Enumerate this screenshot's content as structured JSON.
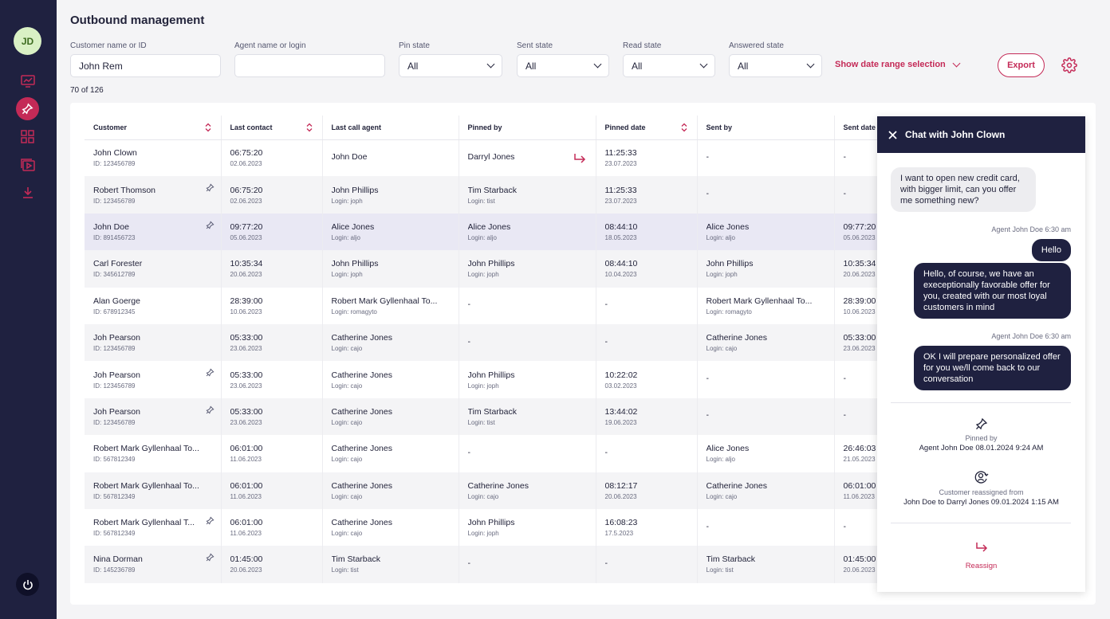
{
  "user": {
    "initials": "JD"
  },
  "page": {
    "title": "Outbound management",
    "count": "70 of 126"
  },
  "filters": {
    "customer": {
      "label": "Customer name or ID",
      "value": "John Rem"
    },
    "agent": {
      "label": "Agent name or login",
      "value": ""
    },
    "pin": {
      "label": "Pin state",
      "value": "All"
    },
    "sent": {
      "label": "Sent state",
      "value": "All"
    },
    "read": {
      "label": "Read state",
      "value": "All"
    },
    "answered": {
      "label": "Answered state",
      "value": "All"
    },
    "date_range": "Show date range selection",
    "export": "Export"
  },
  "table": {
    "headers": [
      "Customer",
      "Last contact",
      "Last call agent",
      "Pinned by",
      "Pinned date",
      "Sent by",
      "Sent date"
    ],
    "rows": [
      {
        "name": "John Clown",
        "id": "ID: 123456789",
        "lc_time": "06:75:20",
        "lc_date": "02.06.2023",
        "agent": "John Doe",
        "agent_login": "",
        "pinned_by": "Darryl Jones",
        "pinned_login": "",
        "pinned_time": "11:25:33",
        "pinned_date": "23.07.2023",
        "sent_by": "-",
        "sent_login": "",
        "sent_time": "-",
        "sent_date": "",
        "pin_icon": false,
        "arrow": true
      },
      {
        "name": "Robert Thomson",
        "id": "ID: 123456789",
        "lc_time": "06:75:20",
        "lc_date": "02.06.2023",
        "agent": "John Phillips",
        "agent_login": "Login: joph",
        "pinned_by": "Tim Starback",
        "pinned_login": "Login: tist",
        "pinned_time": "11:25:33",
        "pinned_date": "23.07.2023",
        "sent_by": "-",
        "sent_login": "",
        "sent_time": "-",
        "sent_date": "",
        "pin_icon": true,
        "arrow": false
      },
      {
        "name": "John Doe",
        "id": "ID: 891456723",
        "lc_time": "09:77:20",
        "lc_date": "05.06.2023",
        "agent": "Alice Jones",
        "agent_login": "Login: aljo",
        "pinned_by": "Alice Jones",
        "pinned_login": "Login: aljo",
        "pinned_time": "08:44:10",
        "pinned_date": "18.05.2023",
        "sent_by": "Alice Jones",
        "sent_login": "Login: aljo",
        "sent_time": "09:77:20",
        "sent_date": "05.06.2023",
        "pin_icon": true,
        "arrow": false
      },
      {
        "name": "Carl Forester",
        "id": "ID: 345612789",
        "lc_time": "10:35:34",
        "lc_date": "20.06.2023",
        "agent": "John Phillips",
        "agent_login": "Login: joph",
        "pinned_by": "John Phillips",
        "pinned_login": "Login: joph",
        "pinned_time": "08:44:10",
        "pinned_date": "10.04.2023",
        "sent_by": "John Phillips",
        "sent_login": "Login: joph",
        "sent_time": "10:35:34",
        "sent_date": "20.06.2023",
        "pin_icon": false,
        "arrow": false
      },
      {
        "name": "Alan Goerge",
        "id": "ID: 678912345",
        "lc_time": "28:39:00",
        "lc_date": "10.06.2023",
        "agent": "Robert Mark Gyllenhaal To...",
        "agent_login": "Login: romagyto",
        "pinned_by": "-",
        "pinned_login": "",
        "pinned_time": "-",
        "pinned_date": "",
        "sent_by": "Robert Mark Gyllenhaal To...",
        "sent_login": "Login: romagyto",
        "sent_time": "28:39:00",
        "sent_date": "10.06.2023",
        "pin_icon": false,
        "arrow": false
      },
      {
        "name": "Joh Pearson",
        "id": "ID: 123456789",
        "lc_time": "05:33:00",
        "lc_date": "23.06.2023",
        "agent": "Catherine Jones",
        "agent_login": "Login: cajo",
        "pinned_by": "-",
        "pinned_login": "",
        "pinned_time": "-",
        "pinned_date": "",
        "sent_by": "Catherine Jones",
        "sent_login": "Login: cajo",
        "sent_time": "05:33:00",
        "sent_date": "23.06.2023",
        "pin_icon": false,
        "arrow": false
      },
      {
        "name": "Joh Pearson",
        "id": "ID: 123456789",
        "lc_time": "05:33:00",
        "lc_date": "23.06.2023",
        "agent": "Catherine Jones",
        "agent_login": "Login: cajo",
        "pinned_by": "John Phillips",
        "pinned_login": "Login: joph",
        "pinned_time": "10:22:02",
        "pinned_date": "03.02.2023",
        "sent_by": "-",
        "sent_login": "",
        "sent_time": "-",
        "sent_date": "",
        "pin_icon": true,
        "arrow": false
      },
      {
        "name": "Joh Pearson",
        "id": "ID: 123456789",
        "lc_time": "05:33:00",
        "lc_date": "23.06.2023",
        "agent": "Catherine Jones",
        "agent_login": "Login: cajo",
        "pinned_by": "Tim Starback",
        "pinned_login": "Login: tist",
        "pinned_time": "13:44:02",
        "pinned_date": "19.06.2023",
        "sent_by": "-",
        "sent_login": "",
        "sent_time": "-",
        "sent_date": "",
        "pin_icon": true,
        "arrow": false
      },
      {
        "name": "Robert Mark Gyllenhaal To...",
        "id": "ID: 567812349",
        "lc_time": "06:01:00",
        "lc_date": "11.06.2023",
        "agent": "Catherine Jones",
        "agent_login": "Login: cajo",
        "pinned_by": "-",
        "pinned_login": "",
        "pinned_time": "-",
        "pinned_date": "",
        "sent_by": "Alice Jones",
        "sent_login": "Login: aljo",
        "sent_time": "26:46:03",
        "sent_date": "21.05.2023",
        "pin_icon": false,
        "arrow": false
      },
      {
        "name": "Robert Mark Gyllenhaal To...",
        "id": "ID: 567812349",
        "lc_time": "06:01:00",
        "lc_date": "11.06.2023",
        "agent": "Catherine Jones",
        "agent_login": "Login: cajo",
        "pinned_by": "Catherine Jones",
        "pinned_login": "Login: cajo",
        "pinned_time": "08:12:17",
        "pinned_date": "20.06.2023",
        "sent_by": "Catherine Jones",
        "sent_login": "Login: cajo",
        "sent_time": "06:01:00",
        "sent_date": "11.06.2023",
        "pin_icon": false,
        "arrow": false
      },
      {
        "name": "Robert Mark Gyllenhaal T...",
        "id": "ID: 567812349",
        "lc_time": "06:01:00",
        "lc_date": "11.06.2023",
        "agent": "Catherine Jones",
        "agent_login": "Login: cajo",
        "pinned_by": "John Phillips",
        "pinned_login": "Login: joph",
        "pinned_time": "16:08:23",
        "pinned_date": "17.5.2023",
        "sent_by": "-",
        "sent_login": "",
        "sent_time": "-",
        "sent_date": "",
        "pin_icon": true,
        "arrow": false
      },
      {
        "name": "Nina Dorman",
        "id": "ID: 145236789",
        "lc_time": "01:45:00",
        "lc_date": "20.06.2023",
        "agent": "Tim Starback",
        "agent_login": "Login: tist",
        "pinned_by": "-",
        "pinned_login": "",
        "pinned_time": "-",
        "pinned_date": "",
        "sent_by": "Tim Starback",
        "sent_login": "Login: tist",
        "sent_time": "01:45:00",
        "sent_date": "20.06.2023",
        "pin_icon": true,
        "arrow": false
      }
    ]
  },
  "chat": {
    "title": "Chat with John Clown",
    "customer_message": "I want to open new credit card, with bigger limit, can you offer me something new?",
    "meta1": "Agent John Doe 6:30 am",
    "agent_message1": "Hello",
    "agent_message2": "Hello, of course, we have an execeptionally favorable offer for you, created with our most loyal customers in mind",
    "meta2": "Agent John Doe 6:30 am",
    "agent_message3": "OK I will prepare personalized offer for you we/ll come back to our conversation",
    "pinned_label": "Pinned by",
    "pinned_detail": "Agent John Doe 08.01.2024 9:24 AM",
    "reassigned_label": "Customer reassigned from",
    "reassigned_detail": "John Doe to Darryl Jones 09.01.2024 1:15 AM",
    "reassign_button": "Reassign"
  },
  "colors": {
    "sidebar": "#1f2140",
    "accent": "#c42a57",
    "avatar": "#d9f0c4"
  }
}
